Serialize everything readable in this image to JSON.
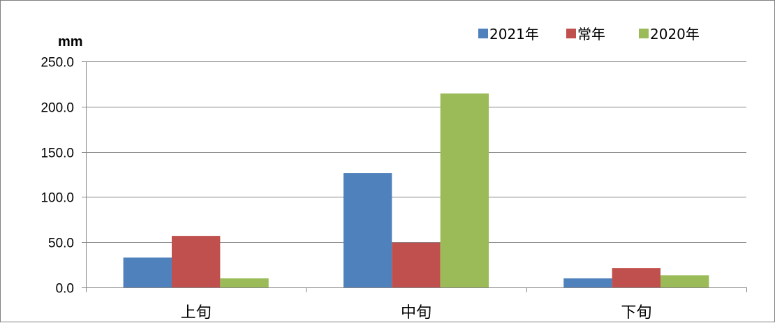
{
  "chart_data": {
    "type": "bar",
    "ylabel": "mm",
    "categories": [
      "上旬",
      "中旬",
      "下旬"
    ],
    "series": [
      {
        "name": "2021年",
        "color": "#4f81bd",
        "values": [
          33.0,
          126.5,
          10.0
        ]
      },
      {
        "name": "常年",
        "color": "#c0504d",
        "values": [
          57.0,
          49.5,
          21.5
        ]
      },
      {
        "name": "2020年",
        "color": "#9bbb59",
        "values": [
          10.0,
          214.5,
          13.5
        ]
      }
    ],
    "ylim": [
      0,
      250
    ],
    "yticks": [
      "0.0",
      "50.0",
      "100.0",
      "150.0",
      "200.0",
      "250.0"
    ],
    "grid": true,
    "legend_position": "top-right"
  }
}
